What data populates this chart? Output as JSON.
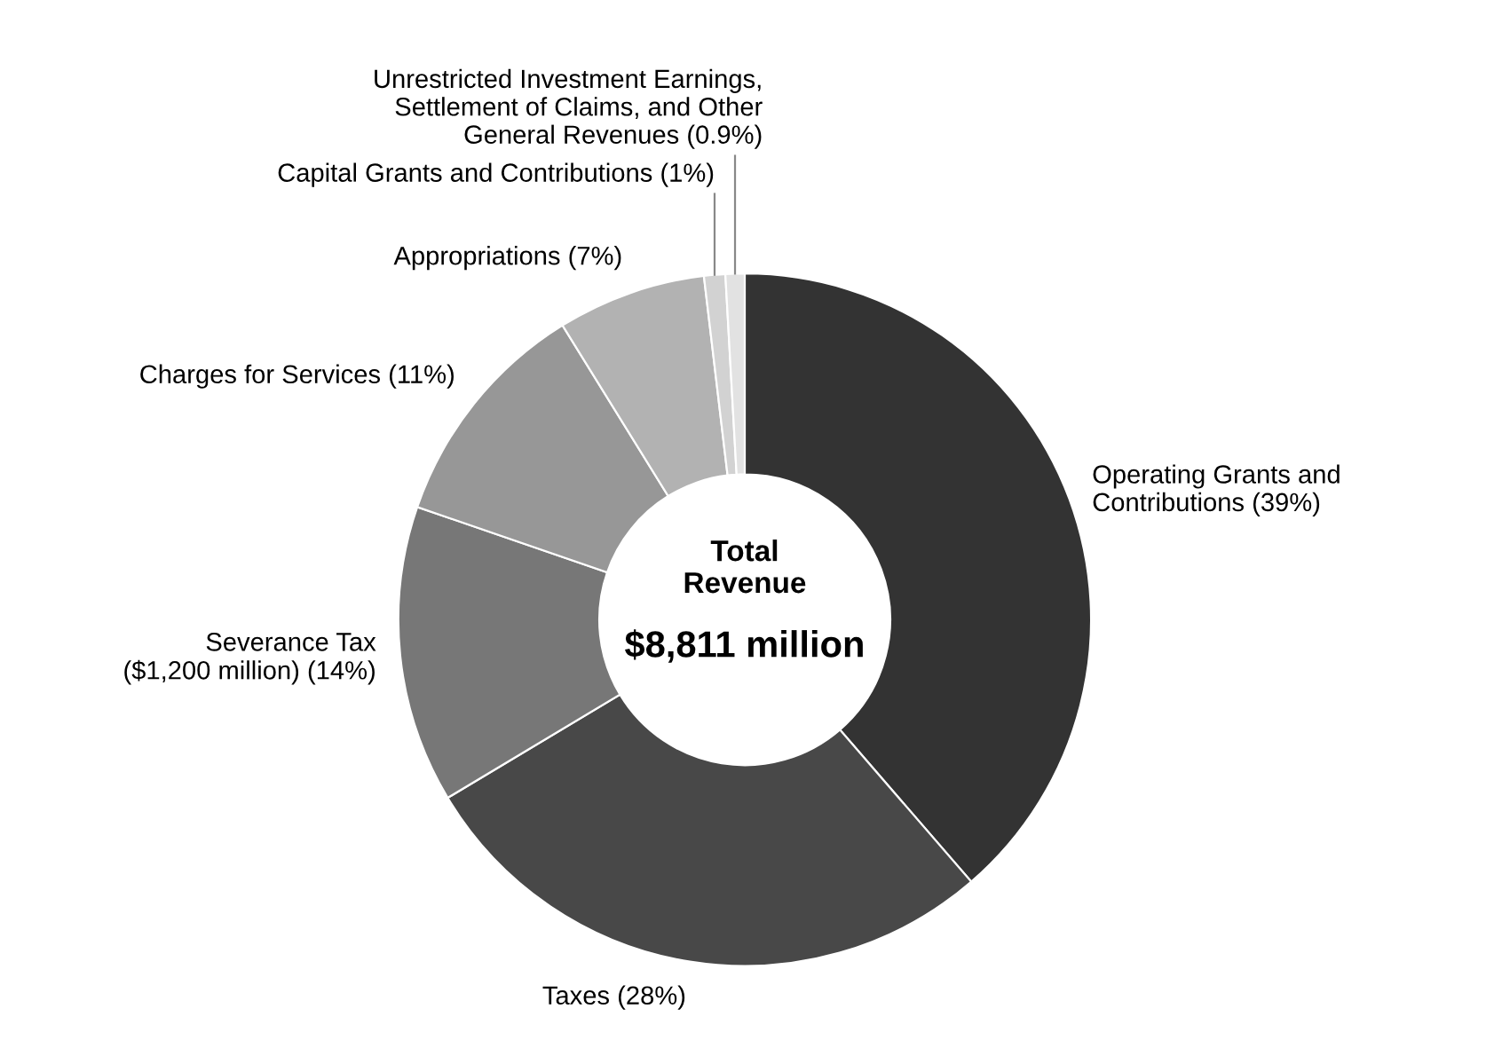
{
  "chart_data": {
    "type": "donut",
    "categories": [
      "Operating Grants and\nContributions",
      "Taxes",
      "Severance Tax\n($1,200 million)",
      "Charges for Services",
      "Appropriations",
      "Capital Grants and Contributions",
      "Unrestricted Investment Earnings,\nSettlement of Claims, and Other\nGeneral Revenues"
    ],
    "values": [
      39,
      28,
      14,
      11,
      7,
      1,
      0.9
    ],
    "value_labels": [
      "(39%)",
      "(28%)",
      "(14%)",
      "(11%)",
      "(7%)",
      "(1%)",
      "(0.9%)"
    ],
    "colors": [
      "#333333",
      "#484848",
      "#777777",
      "#979797",
      "#b2b2b2",
      "#d2d2d2",
      "#e2e2e2"
    ],
    "annotations": [
      "Total\nRevenue",
      "$8,811 million"
    ],
    "legend": false
  }
}
